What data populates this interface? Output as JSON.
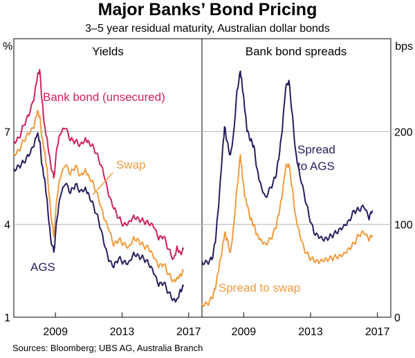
{
  "chart_data": {
    "type": "line",
    "title": "Major Banks’ Bond Pricing",
    "subtitle": "3–5 year residual maturity, Australian dollar bonds",
    "source": "Sources:   Bloomberg; UBS AG, Australia Branch",
    "colors": {
      "bank_bond": "#d0225a",
      "swap": "#f39a3c",
      "ags": "#2a1a5e",
      "spread_ags": "#2a1a5e",
      "spread_swap": "#f39a3c",
      "grid": "#b5b5b5"
    },
    "panels": [
      {
        "id": "yields",
        "title": "Yields",
        "unit_label": "%",
        "ylim": [
          1,
          10
        ],
        "yticks": [
          1,
          4,
          7
        ],
        "xlim": [
          2006.5,
          2017.8
        ],
        "xticks": [
          "2009",
          "2013",
          "2017"
        ],
        "xtick_values": [
          2009,
          2013,
          2017
        ],
        "series": [
          {
            "name": "Bank bond (unsecured)",
            "key": "bank_bond",
            "x": [
              2006.5,
              2006.8,
              2007.1,
              2007.4,
              2007.7,
              2007.9,
              2008.05,
              2008.2,
              2008.35,
              2008.5,
              2008.7,
              2008.9,
              2009.1,
              2009.3,
              2009.6,
              2009.9,
              2010.2,
              2010.5,
              2010.8,
              2011.0,
              2011.3,
              2011.6,
              2011.9,
              2012.2,
              2012.5,
              2012.8,
              2013.1,
              2013.4,
              2013.7,
              2014.0,
              2014.3,
              2014.6,
              2014.9,
              2015.2,
              2015.5,
              2015.8,
              2016.1,
              2016.3,
              2016.5,
              2016.7
            ],
            "values": [
              6.7,
              6.8,
              7.2,
              7.5,
              8.0,
              8.7,
              9.0,
              8.0,
              7.2,
              6.8,
              6.0,
              5.5,
              6.5,
              6.9,
              7.1,
              6.7,
              6.7,
              6.6,
              6.8,
              6.7,
              6.5,
              6.1,
              5.6,
              4.9,
              4.5,
              4.2,
              4.0,
              4.1,
              4.3,
              4.2,
              4.1,
              4.0,
              3.9,
              3.5,
              3.6,
              3.2,
              2.9,
              3.3,
              3.1,
              3.2
            ]
          },
          {
            "name": "Swap",
            "key": "swap",
            "x": [
              2006.5,
              2006.8,
              2007.1,
              2007.4,
              2007.7,
              2007.9,
              2008.05,
              2008.2,
              2008.35,
              2008.5,
              2008.7,
              2008.9,
              2009.1,
              2009.3,
              2009.6,
              2009.9,
              2010.2,
              2010.5,
              2010.8,
              2011.0,
              2011.3,
              2011.6,
              2011.9,
              2012.2,
              2012.5,
              2012.8,
              2013.1,
              2013.4,
              2013.7,
              2014.0,
              2014.3,
              2014.6,
              2014.9,
              2015.2,
              2015.5,
              2015.8,
              2016.1,
              2016.3,
              2016.5,
              2016.7
            ],
            "values": [
              6.3,
              6.4,
              6.7,
              6.9,
              7.1,
              7.6,
              7.5,
              6.8,
              6.4,
              5.8,
              4.5,
              3.6,
              4.9,
              5.5,
              5.9,
              5.6,
              5.9,
              5.6,
              5.8,
              5.6,
              5.3,
              4.8,
              4.2,
              3.8,
              3.3,
              3.5,
              3.4,
              3.3,
              3.6,
              3.5,
              3.3,
              3.2,
              2.9,
              2.6,
              2.7,
              2.4,
              2.2,
              2.3,
              2.4,
              2.5
            ]
          },
          {
            "name": "AGS",
            "key": "ags",
            "x": [
              2006.5,
              2006.8,
              2007.1,
              2007.4,
              2007.7,
              2007.9,
              2008.05,
              2008.2,
              2008.35,
              2008.5,
              2008.7,
              2008.9,
              2009.1,
              2009.3,
              2009.6,
              2009.9,
              2010.2,
              2010.5,
              2010.8,
              2011.0,
              2011.3,
              2011.6,
              2011.9,
              2012.2,
              2012.5,
              2012.8,
              2013.1,
              2013.4,
              2013.7,
              2014.0,
              2014.3,
              2014.6,
              2014.9,
              2015.2,
              2015.5,
              2015.8,
              2016.1,
              2016.3,
              2016.5,
              2016.7
            ],
            "values": [
              5.8,
              5.9,
              6.0,
              6.2,
              6.5,
              6.9,
              6.7,
              5.9,
              5.5,
              4.8,
              3.6,
              3.1,
              4.2,
              4.9,
              5.3,
              5.0,
              5.3,
              5.1,
              5.2,
              5.0,
              4.6,
              4.1,
              3.4,
              2.8,
              2.6,
              2.9,
              2.8,
              2.8,
              3.1,
              3.0,
              2.9,
              2.7,
              2.4,
              2.0,
              2.1,
              1.8,
              1.6,
              1.6,
              1.9,
              2.0
            ]
          }
        ],
        "labels": {
          "bank_bond": "Bank bond (unsecured)",
          "swap": "Swap",
          "ags": "AGS"
        }
      },
      {
        "id": "spreads",
        "title": "Bank bond spreads",
        "unit_label": "bps",
        "ylim": [
          0,
          300
        ],
        "yticks": [
          0,
          100,
          200
        ],
        "xlim": [
          2006.5,
          2017.8
        ],
        "xticks": [
          "2009",
          "2013",
          "2017"
        ],
        "xtick_values": [
          2009,
          2013,
          2017
        ],
        "series": [
          {
            "name": "Spread to AGS",
            "key": "spread_ags",
            "x": [
              2006.5,
              2006.8,
              2007.1,
              2007.3,
              2007.5,
              2007.7,
              2007.85,
              2008.0,
              2008.2,
              2008.4,
              2008.6,
              2008.8,
              2008.9,
              2009.05,
              2009.2,
              2009.4,
              2009.6,
              2009.8,
              2010.0,
              2010.3,
              2010.6,
              2010.9,
              2011.1,
              2011.3,
              2011.5,
              2011.7,
              2011.9,
              2012.1,
              2012.3,
              2012.6,
              2012.9,
              2013.2,
              2013.5,
              2013.8,
              2014.1,
              2014.4,
              2014.7,
              2015.0,
              2015.3,
              2015.6,
              2015.9,
              2016.2,
              2016.5,
              2016.7
            ],
            "values": [
              60,
              60,
              62,
              80,
              120,
              170,
              205,
              190,
              175,
              200,
              245,
              265,
              250,
              225,
              200,
              190,
              185,
              160,
              145,
              130,
              140,
              150,
              170,
              200,
              245,
              255,
              220,
              180,
              160,
              135,
              110,
              90,
              85,
              82,
              85,
              90,
              95,
              100,
              105,
              115,
              115,
              118,
              105,
              115
            ]
          },
          {
            "name": "Spread to swap",
            "key": "spread_swap",
            "x": [
              2006.5,
              2006.8,
              2007.1,
              2007.3,
              2007.5,
              2007.7,
              2007.85,
              2008.0,
              2008.2,
              2008.4,
              2008.6,
              2008.8,
              2008.9,
              2009.05,
              2009.2,
              2009.4,
              2009.6,
              2009.8,
              2010.0,
              2010.3,
              2010.6,
              2010.9,
              2011.1,
              2011.3,
              2011.5,
              2011.7,
              2011.9,
              2012.1,
              2012.3,
              2012.6,
              2012.9,
              2013.2,
              2013.5,
              2013.8,
              2014.1,
              2014.4,
              2014.7,
              2015.0,
              2015.3,
              2015.6,
              2015.9,
              2016.2,
              2016.5,
              2016.7
            ],
            "values": [
              15,
              15,
              20,
              30,
              50,
              70,
              90,
              85,
              70,
              100,
              140,
              175,
              155,
              130,
              120,
              105,
              100,
              90,
              85,
              80,
              85,
              95,
              110,
              130,
              160,
              165,
              140,
              110,
              95,
              75,
              65,
              60,
              58,
              60,
              62,
              65,
              67,
              70,
              75,
              80,
              88,
              90,
              82,
              88
            ]
          }
        ],
        "labels": {
          "spread_ags": [
            "Spread",
            "to AGS"
          ],
          "spread_swap": "Spread to swap"
        }
      }
    ]
  }
}
